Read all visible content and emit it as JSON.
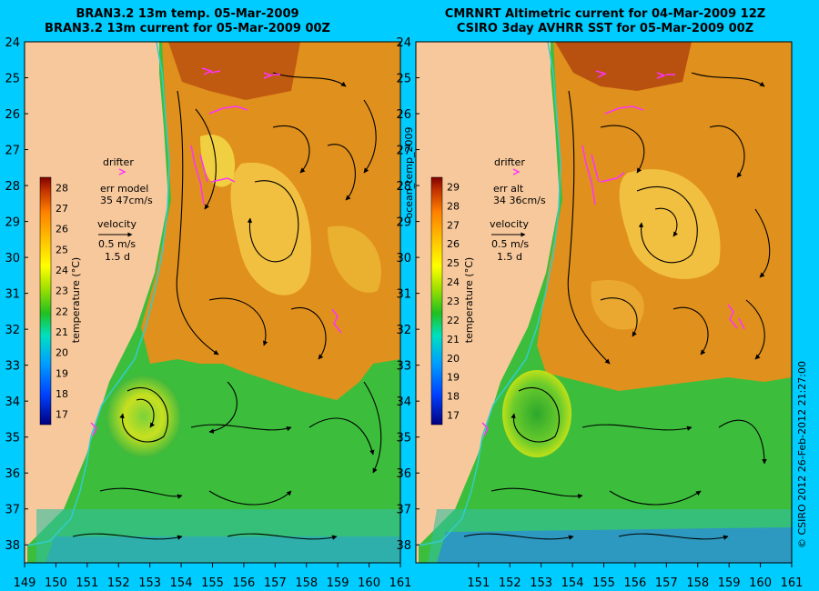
{
  "titles": {
    "left_line1": "BRAN3.2 13m temp. 05-Mar-2009",
    "left_line2": "BRAN3.2 13m current for 05-Mar-2009 00Z",
    "right_line1": "CMRNRT Altimetric current for 04-Mar-2009 12Z",
    "right_line2": "CSIRO 3day AVHRR SST for 05-Mar-2009 00Z"
  },
  "middle_label": "ocean_temp_2009",
  "credit": "© CSIRO 2012   26-Feb-2012 21:27:00",
  "left_legend": {
    "drifter_label": "drifter",
    "err_label": "err model",
    "err_value": "35 47cm/s",
    "velocity_label": "velocity",
    "speed": "0.5 m/s",
    "duration": "1.5 d",
    "colorbar_title": "temperature (°C)",
    "ticks": [
      "17",
      "18",
      "19",
      "20",
      "21",
      "22",
      "23",
      "24",
      "25",
      "26",
      "27",
      "28"
    ]
  },
  "right_legend": {
    "drifter_label": "drifter",
    "err_label": "err alt",
    "err_value": "34 36cm/s",
    "velocity_label": "velocity",
    "speed": "0.5 m/s",
    "duration": "1.5 d",
    "colorbar_title": "temperature (°C)",
    "ticks": [
      "17",
      "18",
      "19",
      "20",
      "21",
      "22",
      "23",
      "24",
      "25",
      "26",
      "27",
      "28",
      "29"
    ]
  },
  "axes": {
    "lat_ticks": [
      "24",
      "25",
      "26",
      "27",
      "28",
      "29",
      "30",
      "31",
      "32",
      "33",
      "34",
      "35",
      "36",
      "37",
      "38"
    ],
    "lon_ticks_left": [
      "149",
      "150",
      "151",
      "152",
      "153",
      "154",
      "155",
      "156",
      "157",
      "158",
      "159",
      "160",
      "161"
    ],
    "lon_ticks_right": [
      "151",
      "152",
      "153",
      "154",
      "155",
      "156",
      "157",
      "158",
      "159",
      "160",
      "161"
    ],
    "lat_range": [
      24,
      38.5
    ],
    "lon_range_left": [
      149,
      161
    ],
    "lon_range_right": [
      149,
      161
    ]
  },
  "colors": {
    "background": "#00ccff",
    "land": "#f7c89b",
    "coast_line": "#33cccc",
    "drifter": "#ff33ff",
    "warm_orange": "#e0901c",
    "cool_green": "#3cbe3c"
  }
}
